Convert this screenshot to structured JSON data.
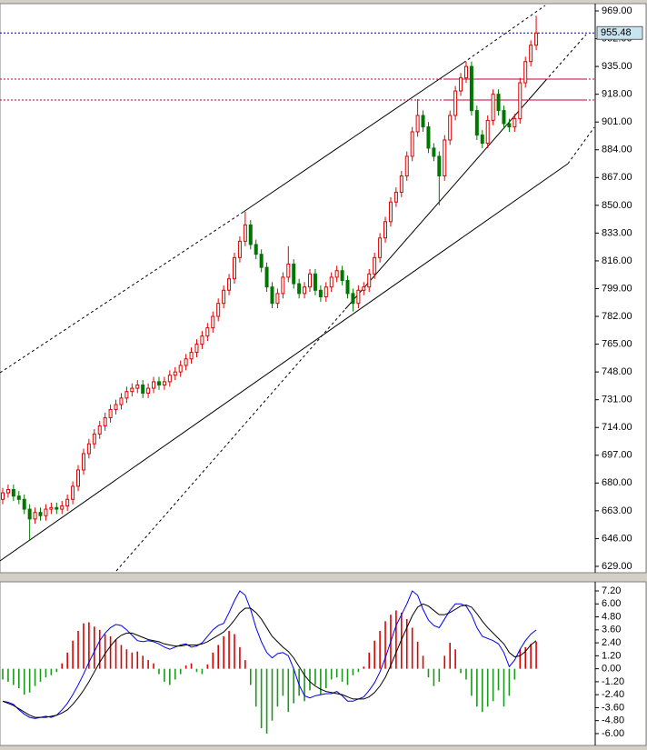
{
  "chart_data": [
    {
      "type": "candlestick",
      "up_color": "#e00000",
      "down_color": "#007700",
      "ylim": [
        626.2,
        972.9
      ],
      "yticks": [
        {
          "value": 969,
          "label": "969.00"
        },
        {
          "value": 952,
          "label": "952.00"
        },
        {
          "value": 935,
          "label": "935.00"
        },
        {
          "value": 918,
          "label": "918.00"
        },
        {
          "value": 901,
          "label": "901.00"
        },
        {
          "value": 884,
          "label": "884.00"
        },
        {
          "value": 867,
          "label": "867.00"
        },
        {
          "value": 850,
          "label": "850.00"
        },
        {
          "value": 833,
          "label": "833.00"
        },
        {
          "value": 816,
          "label": "816.00"
        },
        {
          "value": 799,
          "label": "799.00"
        },
        {
          "value": 782,
          "label": "782.00"
        },
        {
          "value": 765,
          "label": "765.00"
        },
        {
          "value": 748,
          "label": "748.00"
        },
        {
          "value": 731,
          "label": "731.00"
        },
        {
          "value": 714,
          "label": "714.00"
        },
        {
          "value": 697,
          "label": "697.00"
        },
        {
          "value": 680,
          "label": "680.00"
        },
        {
          "value": 663,
          "label": "663.00"
        },
        {
          "value": 646,
          "label": "646.00"
        },
        {
          "value": 629,
          "label": "629.00"
        }
      ],
      "current_price": {
        "value": 955.48,
        "label": "955.48",
        "color": "#000080"
      },
      "levels": [
        927.3,
        914.5
      ],
      "level_color": "#c8003c",
      "open": [
        670,
        674,
        676,
        672,
        670,
        664,
        658,
        662,
        660,
        664,
        665,
        664,
        666,
        670,
        678,
        688,
        698,
        704,
        710,
        715,
        720,
        725,
        728,
        732,
        736,
        738,
        740,
        735,
        738,
        742,
        740,
        742,
        746,
        748,
        752,
        756,
        760,
        765,
        770,
        775,
        782,
        790,
        798,
        805,
        818,
        828,
        838,
        826,
        820,
        812,
        800,
        790,
        796,
        806,
        814,
        802,
        796,
        800,
        808,
        798,
        794,
        800,
        806,
        810,
        804,
        796,
        790,
        798,
        800,
        808,
        818,
        830,
        840,
        852,
        858,
        868,
        880,
        895,
        905,
        898,
        885,
        880,
        868,
        890,
        905,
        920,
        928,
        935,
        908,
        893,
        888,
        902,
        918,
        908,
        900,
        898,
        903,
        925,
        938,
        948
      ],
      "high": [
        677,
        679,
        679,
        675,
        673,
        667,
        665,
        665,
        667,
        668,
        668,
        669,
        673,
        681,
        691,
        701,
        707,
        713,
        718,
        723,
        728,
        731,
        735,
        739,
        741,
        743,
        743,
        741,
        745,
        745,
        745,
        749,
        751,
        755,
        759,
        763,
        768,
        773,
        778,
        785,
        793,
        801,
        808,
        821,
        831,
        846,
        841,
        829,
        823,
        815,
        803,
        799,
        809,
        825,
        817,
        805,
        803,
        811,
        811,
        801,
        803,
        809,
        813,
        813,
        807,
        799,
        801,
        803,
        811,
        821,
        833,
        843,
        855,
        861,
        871,
        883,
        898,
        915,
        908,
        901,
        888,
        883,
        893,
        908,
        923,
        931,
        938,
        938,
        911,
        896,
        905,
        921,
        921,
        911,
        903,
        906,
        928,
        941,
        951,
        966
      ],
      "low": [
        667,
        671,
        669,
        667,
        661,
        645,
        655,
        657,
        657,
        661,
        661,
        661,
        663,
        667,
        675,
        685,
        695,
        701,
        707,
        712,
        717,
        722,
        725,
        729,
        733,
        735,
        732,
        732,
        735,
        737,
        737,
        739,
        743,
        745,
        749,
        753,
        757,
        762,
        767,
        772,
        779,
        787,
        795,
        802,
        815,
        825,
        823,
        817,
        809,
        797,
        787,
        787,
        793,
        803,
        799,
        793,
        793,
        797,
        795,
        791,
        791,
        797,
        803,
        801,
        793,
        785,
        787,
        795,
        797,
        805,
        815,
        827,
        837,
        849,
        855,
        865,
        877,
        892,
        895,
        882,
        877,
        850,
        865,
        887,
        902,
        917,
        925,
        905,
        890,
        885,
        885,
        899,
        905,
        897,
        895,
        895,
        900,
        922,
        935,
        945
      ],
      "close": [
        674,
        676,
        672,
        670,
        664,
        658,
        662,
        660,
        664,
        665,
        664,
        666,
        670,
        678,
        688,
        698,
        704,
        710,
        715,
        720,
        725,
        728,
        732,
        736,
        738,
        740,
        735,
        738,
        742,
        740,
        742,
        746,
        748,
        752,
        756,
        760,
        765,
        770,
        775,
        782,
        790,
        798,
        805,
        818,
        828,
        838,
        826,
        820,
        812,
        800,
        790,
        796,
        806,
        814,
        802,
        796,
        800,
        808,
        798,
        794,
        800,
        806,
        810,
        804,
        796,
        790,
        798,
        800,
        808,
        818,
        830,
        840,
        852,
        858,
        868,
        880,
        895,
        905,
        898,
        885,
        880,
        868,
        890,
        905,
        920,
        928,
        935,
        908,
        893,
        888,
        902,
        918,
        908,
        900,
        898,
        903,
        925,
        938,
        948,
        955.48
      ]
    },
    {
      "type": "macd",
      "up_color": "#e00000",
      "down_color": "#1a9a1a",
      "ylim": [
        -6.93,
        7.96
      ],
      "yticks": [
        {
          "value": 7.2,
          "label": "7.20"
        },
        {
          "value": 6,
          "label": "6.00"
        },
        {
          "value": 4.8,
          "label": "4.80"
        },
        {
          "value": 3.6,
          "label": "3.60"
        },
        {
          "value": 2.4,
          "label": "2.40"
        },
        {
          "value": 1.2,
          "label": "1.20"
        },
        {
          "value": 0,
          "label": "0.00"
        },
        {
          "value": -1.2,
          "label": "-1.20"
        },
        {
          "value": -2.4,
          "label": "-2.40"
        },
        {
          "value": -3.6,
          "label": "-3.60"
        },
        {
          "value": -4.8,
          "label": "-4.80"
        },
        {
          "value": -6,
          "label": "-6.00"
        }
      ],
      "histogram": [
        -1.0,
        -1.2,
        -1.5,
        -1.8,
        -2.4,
        -2.2,
        -1.6,
        -1.2,
        -0.8,
        -0.6,
        -0.3,
        0.5,
        1.5,
        2.6,
        3.5,
        4.2,
        4.3,
        3.9,
        3.6,
        3.2,
        3.0,
        2.7,
        2.2,
        1.8,
        1.5,
        1.6,
        1.2,
        0.8,
        0.5,
        -0.5,
        -1.2,
        -1.5,
        -1.0,
        -0.5,
        0.3,
        0.5,
        -0.3,
        -0.5,
        0.4,
        1.5,
        2.2,
        3.0,
        3.5,
        3.2,
        2.0,
        0.8,
        -1.5,
        -3.5,
        -5.5,
        -6.0,
        -4.8,
        -3.5,
        -2.5,
        -4.0,
        -3.2,
        -2.5,
        -3.0,
        -2.0,
        -1.5,
        -2.4,
        -1.8,
        -1.0,
        -0.8,
        -1.2,
        -1.5,
        -0.6,
        -0.3,
        0.2,
        1.5,
        2.6,
        3.5,
        4.4,
        5.0,
        5.4,
        5.2,
        4.6,
        3.8,
        2.5,
        1.2,
        -0.8,
        -1.6,
        -1.2,
        1.2,
        2.4,
        1.8,
        -0.4,
        -1.0,
        -2.5,
        -3.5,
        -4.0,
        -3.5,
        -3.0,
        -2.0,
        -3.5,
        -2.5,
        -1.0,
        1.8,
        2.0,
        2.3,
        2.5
      ],
      "series": [
        {
          "color": "#0000ee",
          "values": [
            -3.0,
            -3.1,
            -3.3,
            -3.8,
            -4.2,
            -4.5,
            -4.6,
            -4.5,
            -4.4,
            -4.5,
            -4.3,
            -3.8,
            -3.2,
            -2.4,
            -1.5,
            -0.5,
            0.6,
            1.6,
            2.6,
            3.3,
            3.8,
            4.1,
            4.0,
            3.6,
            3.1,
            2.6,
            2.5,
            2.6,
            2.5,
            2.3,
            2.0,
            1.8,
            2.0,
            2.2,
            2.3,
            2.0,
            2.1,
            2.4,
            3.0,
            3.6,
            4.0,
            4.2,
            5.2,
            6.3,
            7.2,
            6.8,
            5.5,
            3.8,
            2.5,
            1.5,
            1.0,
            1.4,
            1.5,
            1.2,
            0.0,
            -1.5,
            -2.5,
            -2.7,
            -2.5,
            -2.4,
            -2.3,
            -2.3,
            -2.1,
            -2.5,
            -3.0,
            -3.0,
            -2.8,
            -2.6,
            -2.0,
            -1.3,
            -0.3,
            1.0,
            2.5,
            4.0,
            5.0,
            6.0,
            7.2,
            6.8,
            5.5,
            4.5,
            4.0,
            3.8,
            4.6,
            5.4,
            6.0,
            6.0,
            5.8,
            5.0,
            3.8,
            3.0,
            2.8,
            2.6,
            2.3,
            1.5,
            0.2,
            0.8,
            1.8,
            2.6,
            3.2,
            3.6
          ]
        },
        {
          "color": "#000000",
          "values": [
            -3.0,
            -3.2,
            -3.4,
            -3.7,
            -4.0,
            -4.3,
            -4.5,
            -4.5,
            -4.5,
            -4.4,
            -4.3,
            -4.1,
            -3.8,
            -3.3,
            -2.7,
            -2.0,
            -1.2,
            -0.3,
            0.6,
            1.4,
            2.1,
            2.7,
            3.1,
            3.3,
            3.3,
            3.1,
            2.9,
            2.7,
            2.6,
            2.5,
            2.3,
            2.2,
            2.1,
            2.1,
            2.2,
            2.2,
            2.2,
            2.3,
            2.5,
            2.8,
            3.1,
            3.4,
            3.9,
            4.5,
            5.2,
            5.6,
            5.6,
            5.2,
            4.6,
            3.8,
            3.0,
            2.5,
            2.0,
            1.6,
            1.0,
            0.2,
            -0.6,
            -1.2,
            -1.6,
            -1.9,
            -2.1,
            -2.2,
            -2.3,
            -2.4,
            -2.6,
            -2.8,
            -2.8,
            -2.8,
            -2.6,
            -2.2,
            -1.6,
            -0.8,
            0.3,
            1.5,
            2.7,
            3.8,
            4.9,
            5.7,
            6.0,
            5.8,
            5.4,
            5.0,
            5.0,
            5.2,
            5.5,
            5.8,
            5.9,
            5.7,
            5.1,
            4.4,
            3.8,
            3.3,
            2.8,
            2.3,
            1.5,
            1.1,
            1.2,
            1.6,
            2.2,
            2.6
          ]
        }
      ]
    }
  ]
}
